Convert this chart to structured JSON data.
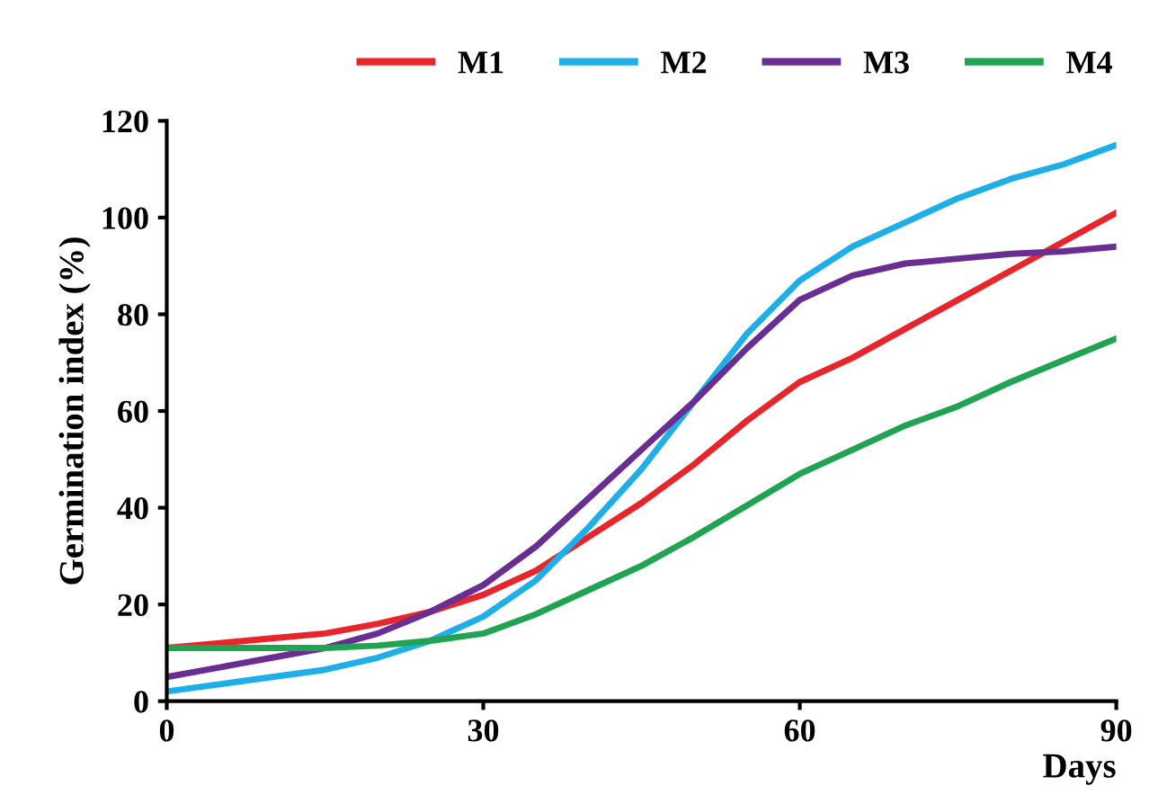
{
  "chart_data": {
    "type": "line",
    "xlabel": "Days",
    "ylabel": "Germination index (%)",
    "x": [
      0,
      5,
      10,
      15,
      20,
      25,
      30,
      35,
      40,
      45,
      50,
      55,
      60,
      65,
      70,
      75,
      80,
      85,
      90
    ],
    "series": [
      {
        "name": "M1",
        "color": "#e8252a",
        "values": [
          11,
          12,
          13,
          14,
          16,
          18.5,
          22,
          27,
          34,
          41,
          49,
          58,
          66,
          71,
          77,
          83,
          89,
          95,
          101
        ]
      },
      {
        "name": "M2",
        "color": "#1eaee8",
        "values": [
          2,
          3.5,
          5,
          6.5,
          9,
          12.5,
          17.5,
          25,
          36,
          48,
          62,
          76,
          87,
          94,
          99,
          104,
          108,
          111,
          115
        ]
      },
      {
        "name": "M3",
        "color": "#6a2d91",
        "values": [
          5,
          7,
          9,
          11,
          14,
          18.5,
          24,
          32,
          42,
          52,
          62,
          73,
          83,
          88,
          90.5,
          91.5,
          92.5,
          93,
          94
        ]
      },
      {
        "name": "M4",
        "color": "#20a452",
        "values": [
          11,
          11,
          11,
          11,
          11.5,
          12.5,
          14,
          18,
          23,
          28,
          34,
          40.5,
          47,
          52,
          57,
          61,
          66,
          70.5,
          75
        ]
      }
    ],
    "xlim": [
      0,
      90
    ],
    "ylim": [
      0,
      120
    ],
    "xticks": [
      0,
      30,
      60,
      90
    ],
    "yticks": [
      0,
      20,
      40,
      60,
      80,
      100,
      120
    ],
    "grid": false,
    "legend": "top",
    "marker": "none",
    "line_style": "solid"
  }
}
